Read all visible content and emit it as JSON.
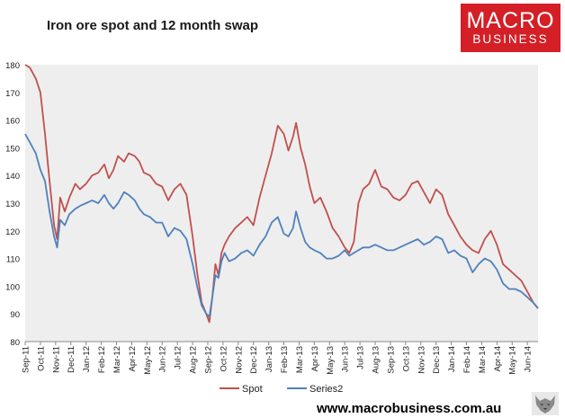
{
  "chart_data": {
    "type": "line",
    "title": "Iron ore spot and 12 month swap",
    "xlabel": "",
    "ylabel": "",
    "ylim": [
      80,
      180
    ],
    "yticks": [
      80,
      90,
      100,
      110,
      120,
      130,
      140,
      150,
      160,
      170,
      180
    ],
    "x_tick_labels": [
      "Sep-11",
      "Oct-11",
      "Nov-11",
      "Dec-11",
      "Jan-12",
      "Feb-12",
      "Mar-12",
      "Apr-12",
      "May-12",
      "Jun-12",
      "Jul-12",
      "Aug-12",
      "Sep-12",
      "Oct-12",
      "Nov-12",
      "Dec-12",
      "Jan-13",
      "Feb-13",
      "Mar-13",
      "Apr-13",
      "May-13",
      "Jun-13",
      "Jul-13",
      "Aug-13",
      "Sep-13",
      "Oct-13",
      "Nov-13",
      "Dec-13",
      "Jan-14",
      "Feb-14",
      "Mar-14",
      "Apr-14",
      "May-14",
      "Jun-14"
    ],
    "x_months_span": [
      0,
      33.7
    ],
    "grid": false,
    "legend_position": "bottom",
    "plot_background": "#eeeeee",
    "series": [
      {
        "name": "Spot",
        "color": "#c0504d",
        "x": [
          0,
          0.3,
          0.7,
          1.0,
          1.3,
          1.6,
          1.9,
          2.1,
          2.3,
          2.6,
          2.9,
          3.3,
          3.6,
          4.0,
          4.4,
          4.8,
          5.2,
          5.5,
          5.8,
          6.1,
          6.5,
          6.8,
          7.2,
          7.5,
          7.8,
          8.2,
          8.6,
          9.0,
          9.4,
          9.8,
          10.2,
          10.6,
          11.0,
          11.3,
          11.6,
          11.9,
          12.1,
          12.3,
          12.5,
          12.7,
          12.9,
          13.1,
          13.4,
          13.8,
          14.2,
          14.6,
          15.0,
          15.4,
          15.8,
          16.2,
          16.6,
          17.0,
          17.3,
          17.6,
          17.8,
          18.1,
          18.4,
          18.7,
          19.0,
          19.4,
          19.8,
          20.2,
          20.6,
          21.0,
          21.3,
          21.6,
          21.9,
          22.2,
          22.6,
          23.0,
          23.4,
          23.8,
          24.2,
          24.6,
          25.0,
          25.4,
          25.8,
          26.2,
          26.6,
          27.0,
          27.4,
          27.8,
          28.2,
          28.6,
          29.0,
          29.4,
          29.8,
          30.2,
          30.6,
          31.0,
          31.4,
          31.8,
          32.2,
          32.6,
          33.0,
          33.4,
          33.7
        ],
        "values": [
          180,
          179,
          175,
          170,
          155,
          138,
          122,
          117,
          132,
          127,
          132,
          137,
          135,
          137,
          140,
          141,
          144,
          139,
          142,
          147,
          145,
          148,
          147,
          145,
          141,
          140,
          137,
          136,
          131,
          135,
          137,
          133,
          118,
          105,
          94,
          90,
          87,
          96,
          108,
          104,
          112,
          115,
          118,
          121,
          123,
          125,
          122,
          132,
          140,
          148,
          158,
          155,
          149,
          154,
          159,
          150,
          144,
          136,
          130,
          132,
          127,
          121,
          118,
          114,
          112,
          116,
          130,
          135,
          137,
          142,
          136,
          135,
          132,
          131,
          133,
          137,
          138,
          134,
          130,
          135,
          133,
          126,
          122,
          118,
          115,
          113,
          112,
          117,
          120,
          115,
          108,
          106,
          104,
          102,
          98,
          94,
          92
        ]
      },
      {
        "name": "Series2",
        "color": "#4f81bd",
        "x": [
          0,
          0.3,
          0.7,
          1.0,
          1.3,
          1.6,
          1.9,
          2.1,
          2.3,
          2.6,
          2.9,
          3.3,
          3.6,
          4.0,
          4.4,
          4.8,
          5.2,
          5.5,
          5.8,
          6.1,
          6.5,
          6.8,
          7.2,
          7.5,
          7.8,
          8.2,
          8.6,
          9.0,
          9.4,
          9.8,
          10.2,
          10.6,
          11.0,
          11.3,
          11.6,
          11.9,
          12.1,
          12.3,
          12.5,
          12.7,
          12.9,
          13.1,
          13.4,
          13.8,
          14.2,
          14.6,
          15.0,
          15.4,
          15.8,
          16.2,
          16.6,
          17.0,
          17.3,
          17.6,
          17.8,
          18.1,
          18.4,
          18.7,
          19.0,
          19.4,
          19.8,
          20.2,
          20.6,
          21.0,
          21.3,
          21.6,
          21.9,
          22.2,
          22.6,
          23.0,
          23.4,
          23.8,
          24.2,
          24.6,
          25.0,
          25.4,
          25.8,
          26.2,
          26.6,
          27.0,
          27.4,
          27.8,
          28.2,
          28.6,
          29.0,
          29.4,
          29.8,
          30.2,
          30.6,
          31.0,
          31.4,
          31.8,
          32.2,
          32.6,
          33.0,
          33.4,
          33.7
        ],
        "values": [
          155,
          152,
          148,
          142,
          138,
          127,
          118,
          114,
          124,
          122,
          126,
          128,
          129,
          130,
          131,
          130,
          133,
          130,
          128,
          130,
          134,
          133,
          131,
          128,
          126,
          125,
          123,
          123,
          118,
          121,
          120,
          117,
          108,
          100,
          93,
          90,
          89,
          96,
          104,
          103,
          109,
          112,
          109,
          110,
          112,
          113,
          111,
          115,
          118,
          123,
          125,
          119,
          118,
          121,
          127,
          121,
          116,
          114,
          113,
          112,
          110,
          110,
          111,
          113,
          111,
          112,
          113,
          114,
          114,
          115,
          114,
          113,
          113,
          114,
          115,
          116,
          117,
          115,
          116,
          118,
          117,
          112,
          113,
          111,
          110,
          105,
          108,
          110,
          109,
          106,
          101,
          99,
          99,
          98,
          96,
          94,
          92
        ]
      }
    ]
  },
  "logo": {
    "line1": "MACRO",
    "line2": "BUSINESS"
  },
  "footer": {
    "url": "www.macrobusiness.com.au"
  },
  "icons": {
    "wolf": "wolf-logo-icon"
  }
}
